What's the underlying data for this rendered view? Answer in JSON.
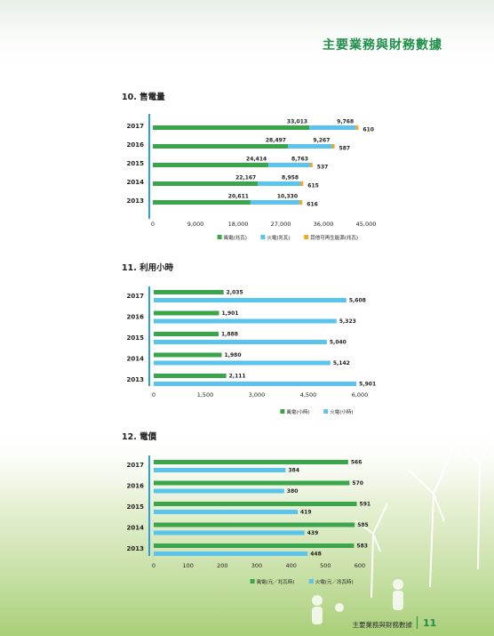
{
  "page": {
    "title": "主要業務與財務數據",
    "footer_text": "主要業務與財務數據",
    "page_number": "11"
  },
  "colors": {
    "green": "#3aa54a",
    "blue": "#5bc4ec",
    "orange": "#f3a628",
    "axis": "#2e9fe0",
    "title_green": "#1f8f4a"
  },
  "chart_data": [
    {
      "id": "sales",
      "type": "bar",
      "stacked": true,
      "orientation": "horizontal",
      "title": "10. 售電量",
      "categories": [
        "2017",
        "2016",
        "2015",
        "2014",
        "2013"
      ],
      "series": [
        {
          "name": "風電(兆瓦)",
          "color": "#3aa54a",
          "values": [
            33013,
            28497,
            24414,
            22167,
            20611
          ],
          "labels": [
            "33,013",
            "28,497",
            "24,414",
            "22,167",
            "20,611"
          ]
        },
        {
          "name": "火電(兆瓦)",
          "color": "#5bc4ec",
          "values": [
            9768,
            9267,
            8763,
            8958,
            10330
          ],
          "labels": [
            "9,768",
            "9,267",
            "8,763",
            "8,958",
            "10,330"
          ]
        },
        {
          "name": "其他可再生能源(兆瓦)",
          "color": "#f3a628",
          "values": [
            610,
            587,
            537,
            615,
            616
          ],
          "labels": [
            "610",
            "587",
            "537",
            "615",
            "616"
          ]
        }
      ],
      "xlim": [
        0,
        45000
      ],
      "ticks": [
        0,
        9000,
        18000,
        27000,
        36000,
        45000
      ],
      "tick_labels": [
        "0",
        "9,000",
        "18,000",
        "27,000",
        "36,000",
        "45,000"
      ],
      "legend_position": "bottom-right"
    },
    {
      "id": "hours",
      "type": "bar",
      "stacked": false,
      "orientation": "horizontal",
      "title": "11. 利用小時",
      "categories": [
        "2017",
        "2016",
        "2015",
        "2014",
        "2013"
      ],
      "series": [
        {
          "name": "風電(小時)",
          "color": "#3aa54a",
          "values": [
            2035,
            1901,
            1888,
            1980,
            2111
          ],
          "labels": [
            "2,035",
            "1,901",
            "1,888",
            "1,980",
            "2,111"
          ]
        },
        {
          "name": "火電(小時)",
          "color": "#5bc4ec",
          "values": [
            5608,
            5323,
            5040,
            5142,
            5901
          ],
          "labels": [
            "5,608",
            "5,323",
            "5,040",
            "5,142",
            "5,901"
          ]
        }
      ],
      "xlim": [
        0,
        6000
      ],
      "ticks": [
        0,
        1500,
        3000,
        4500,
        6000
      ],
      "tick_labels": [
        "0",
        "1,500",
        "3,000",
        "4,500",
        "6,000"
      ],
      "legend_position": "bottom-right"
    },
    {
      "id": "tariff",
      "type": "bar",
      "stacked": false,
      "orientation": "horizontal",
      "title": "12. 電價",
      "categories": [
        "2017",
        "2016",
        "2015",
        "2014",
        "2013"
      ],
      "series": [
        {
          "name": "風電(元／兆瓦時)",
          "color": "#3aa54a",
          "values": [
            566,
            570,
            591,
            585,
            583
          ],
          "labels": [
            "566",
            "570",
            "591",
            "585",
            "583"
          ]
        },
        {
          "name": "火電(元／兆瓦時)",
          "color": "#5bc4ec",
          "values": [
            384,
            380,
            419,
            439,
            448
          ],
          "labels": [
            "384",
            "380",
            "419",
            "439",
            "448"
          ]
        }
      ],
      "xlim": [
        0,
        600
      ],
      "ticks": [
        0,
        100,
        200,
        300,
        400,
        500,
        600
      ],
      "tick_labels": [
        "0",
        "100",
        "200",
        "300",
        "400",
        "500",
        "600"
      ],
      "legend_position": "bottom-right"
    }
  ]
}
